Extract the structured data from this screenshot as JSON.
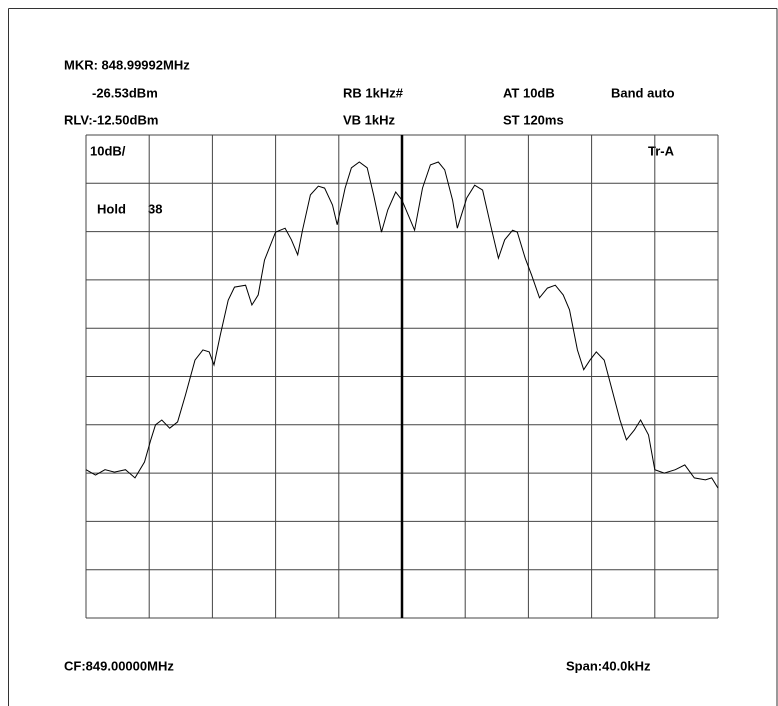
{
  "chart_data": {
    "type": "line",
    "marker": "MKR: 848.99992MHz",
    "marker_level": "-26.53dBm",
    "rbw": "RB 1kHz#",
    "attenuation": "AT 10dB",
    "band": "Band auto",
    "ref_level": "RLV:-12.50dBm",
    "vbw": "VB 1kHz",
    "sweep": "ST 120ms",
    "scale": "10dB/",
    "trace": "Tr-A",
    "hold": "Hold",
    "hold_count": "38",
    "center": "CF:849.00000MHz",
    "span": "Span:40.0kHz",
    "x": [
      -20.0,
      -19.4,
      -18.8,
      -18.2,
      -17.5,
      -16.9,
      -16.3,
      -15.9,
      -15.6,
      -15.2,
      -14.7,
      -14.2,
      -13.7,
      -13.1,
      -12.6,
      -12.2,
      -11.9,
      -11.5,
      -11.0,
      -10.6,
      -9.9,
      -9.5,
      -9.1,
      -8.7,
      -8.0,
      -7.4,
      -7.0,
      -6.6,
      -6.3,
      -5.8,
      -5.3,
      -4.9,
      -4.4,
      -4.1,
      -3.6,
      -3.2,
      -2.7,
      -2.2,
      -1.8,
      -1.3,
      -0.9,
      -0.4,
      0,
      0.4,
      0.8,
      1.3,
      1.8,
      2.3,
      2.7,
      3.2,
      3.5,
      4.1,
      4.6,
      5.1,
      5.6,
      6.1,
      6.5,
      7.0,
      7.3,
      7.8,
      8.2,
      8.7,
      9.2,
      9.7,
      10.2,
      10.6,
      11.1,
      11.5,
      11.9,
      12.3,
      12.8,
      13.3,
      13.8,
      14.2,
      14.7,
      15.1,
      15.6,
      16.0,
      16.6,
      17.3,
      17.9,
      18.5,
      19.2,
      19.6,
      20.0
    ],
    "values": [
      -81.8,
      -82.9,
      -81.8,
      -82.3,
      -81.8,
      -83.5,
      -80.2,
      -75.6,
      -72.5,
      -71.5,
      -73.2,
      -71.9,
      -66.3,
      -59.1,
      -57.0,
      -57.4,
      -60.1,
      -53.9,
      -46.7,
      -44.0,
      -43.6,
      -47.7,
      -45.6,
      -38.4,
      -32.6,
      -31.8,
      -34.2,
      -37.3,
      -32.2,
      -24.9,
      -23.1,
      -23.5,
      -27.0,
      -31.1,
      -23.5,
      -19.3,
      -18.1,
      -19.3,
      -24.9,
      -32.6,
      -28.0,
      -24.3,
      -26.0,
      -29.1,
      -32.2,
      -23.5,
      -18.7,
      -18.1,
      -19.7,
      -26.0,
      -31.8,
      -25.5,
      -22.9,
      -23.9,
      -31.1,
      -38.0,
      -34.2,
      -32.2,
      -32.6,
      -38.0,
      -41.5,
      -46.2,
      -44.2,
      -43.6,
      -45.6,
      -48.7,
      -57.0,
      -61.1,
      -59.1,
      -57.4,
      -59.1,
      -65.3,
      -71.5,
      -75.6,
      -73.6,
      -71.5,
      -74.6,
      -81.8,
      -82.5,
      -81.8,
      -80.8,
      -83.5,
      -83.9,
      -83.5,
      -85.6
    ],
    "color": "#000000",
    "xlim": [
      -20,
      20
    ],
    "xticks": [
      -20,
      -16,
      -12,
      -8,
      -4,
      0,
      4,
      8,
      12,
      16,
      20
    ],
    "ylim": [
      -112.5,
      -12.5
    ],
    "yticks": [
      -112.5,
      -102.5,
      -92.5,
      -82.5,
      -72.5,
      -62.5,
      -52.5,
      -42.5,
      -32.5,
      -22.5,
      -12.5
    ],
    "grid": true
  }
}
